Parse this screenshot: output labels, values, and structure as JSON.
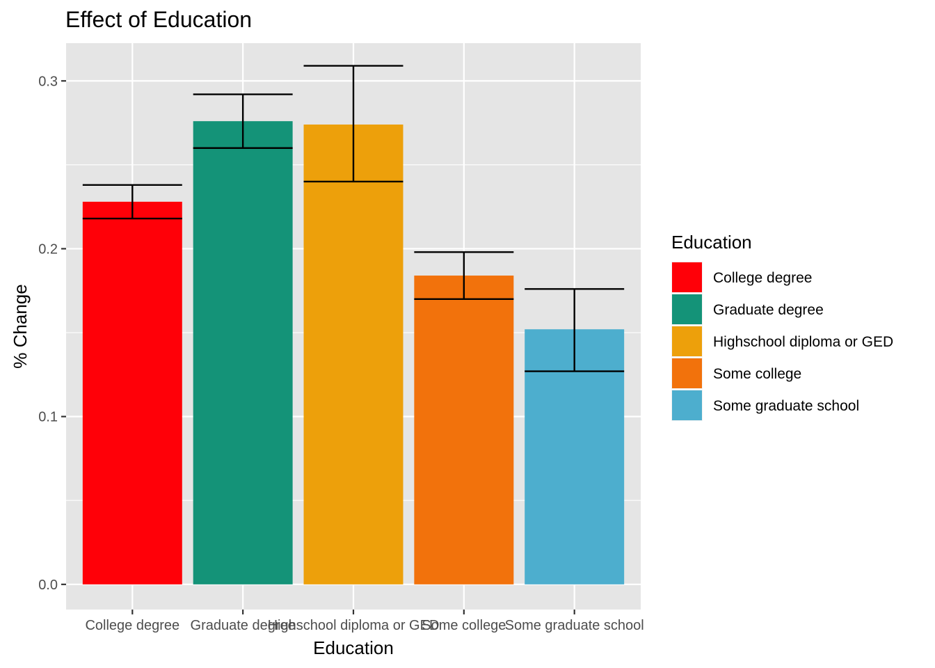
{
  "chart_data": {
    "type": "bar",
    "title": "Effect of Education",
    "xlabel": "Education",
    "ylabel": "% Change",
    "categories": [
      "College degree",
      "Graduate degree",
      "Highschool diploma or GED",
      "Some college",
      "Some graduate school"
    ],
    "values": [
      0.228,
      0.276,
      0.274,
      0.184,
      0.152
    ],
    "error_low": [
      0.218,
      0.26,
      0.24,
      0.17,
      0.127
    ],
    "error_high": [
      0.238,
      0.292,
      0.309,
      0.198,
      0.176
    ],
    "colors": [
      "#ff0008",
      "#149378",
      "#eda00b",
      "#f2720c",
      "#4daece"
    ],
    "ylim": [
      -0.015,
      0.3225
    ],
    "yticks": [
      0.0,
      0.1,
      0.2,
      0.3
    ],
    "ytick_labels": [
      "0.0",
      "0.1",
      "0.2",
      "0.3"
    ],
    "grid": true,
    "legend": {
      "title": "Education",
      "position": "right",
      "items": [
        "College degree",
        "Graduate degree",
        "Highschool diploma or GED",
        "Some college",
        "Some graduate school"
      ]
    },
    "panel_background": "#e5e5e5",
    "grid_color": "#ffffff",
    "errorbar_color": "#000000"
  }
}
